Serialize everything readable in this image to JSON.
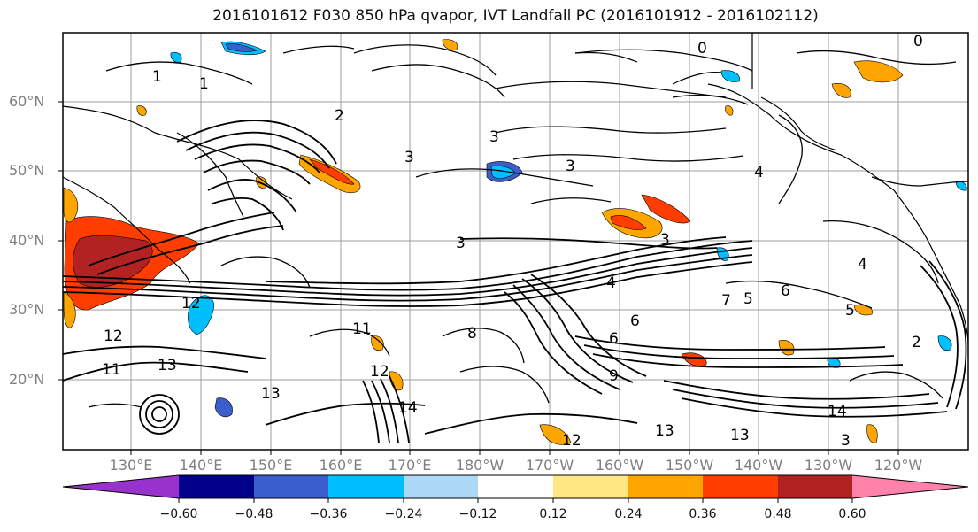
{
  "title": "2016101612 F030 850 hPa qvapor, IVT Landfall PC (2016101912 - 2016102112)",
  "lat_ticks": [
    "60°N",
    "50°N",
    "40°N",
    "30°N",
    "20°N"
  ],
  "lon_ticks": [
    "130°E",
    "140°E",
    "150°E",
    "160°E",
    "170°E",
    "180°W",
    "170°W",
    "160°W",
    "150°W",
    "140°W",
    "130°W",
    "120°W"
  ],
  "colorbar": {
    "labels": [
      "−0.60",
      "−0.48",
      "−0.36",
      "−0.24",
      "−0.12",
      "0.12",
      "0.24",
      "0.36",
      "0.48",
      "0.60"
    ],
    "colors": [
      "#9932cc",
      "#00008b",
      "#3a5fcd",
      "#00bfff",
      "#add8f6",
      "#ffffff",
      "#ffe884",
      "#ffa500",
      "#ff3d00",
      "#b22222",
      "#ff82ab"
    ]
  },
  "contour_labels": [
    "0",
    "0",
    "1",
    "1",
    "2",
    "3",
    "3",
    "3",
    "3",
    "4",
    "4",
    "4",
    "6",
    "6",
    "5",
    "5",
    "7",
    "11",
    "11",
    "12",
    "12",
    "12",
    "13",
    "13",
    "13",
    "13",
    "14",
    "14",
    "12",
    "3",
    "2",
    "3",
    "6",
    "9",
    "8"
  ]
}
